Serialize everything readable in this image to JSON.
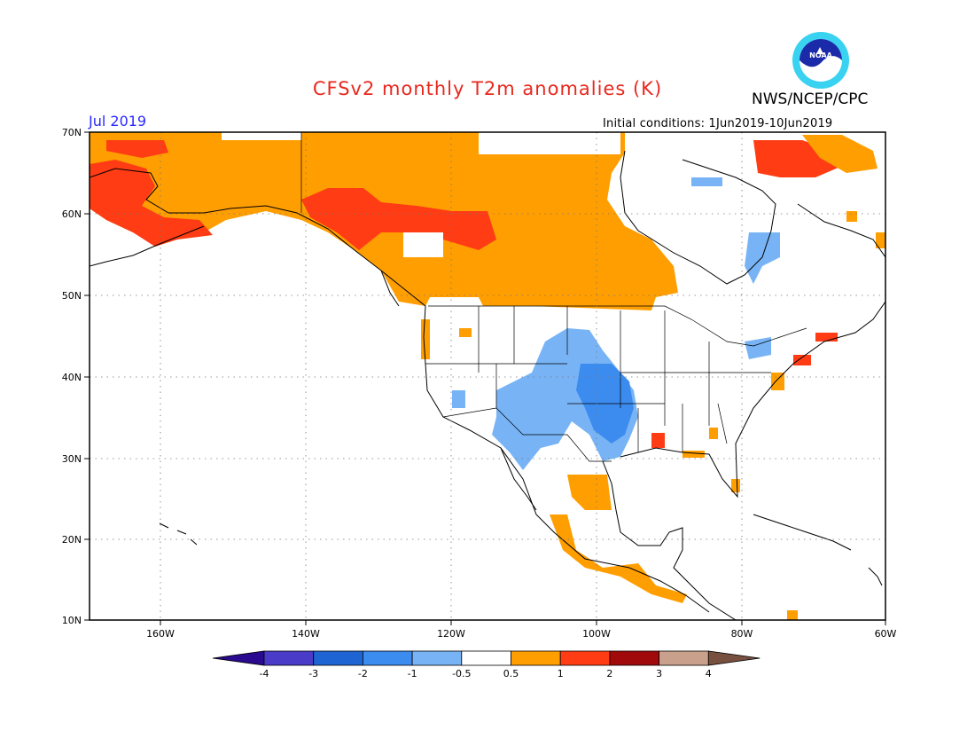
{
  "title": "CFSv2 monthly T2m anomalies (K)",
  "agency": "NWS/NCEP/CPC",
  "logo_text": "NOAA",
  "valid_month": "Jul 2019",
  "initial_conditions": "Initial conditions: 1Jun2019-10Jun2019",
  "lat_labels": [
    "70N",
    "60N",
    "50N",
    "40N",
    "30N",
    "20N",
    "10N"
  ],
  "lon_labels": [
    "160W",
    "140W",
    "120W",
    "100W",
    "80W",
    "60W"
  ],
  "colorbar": {
    "labels": [
      "-4",
      "-3",
      "-2",
      "-1",
      "-0.5",
      "0.5",
      "1",
      "2",
      "3",
      "4"
    ],
    "colors": [
      "#2a0a8f",
      "#4a3cc8",
      "#1e64d2",
      "#3c8cf0",
      "#78b4f5",
      "#ffffff",
      "#ff9e00",
      "#ff3c14",
      "#a00a0a",
      "#c8a08c",
      "#785040"
    ]
  },
  "chart_data": {
    "type": "heatmap",
    "title": "CFSv2 monthly T2m anomalies (K)",
    "units": "K",
    "month": "Jul 2019",
    "lon_range": [
      -170,
      -60
    ],
    "lat_range": [
      10,
      70
    ],
    "regions": [
      {
        "area": "Alaska and NW Canada",
        "anomaly_range": [
          0.5,
          2
        ]
      },
      {
        "area": "Central Canada prairies",
        "anomaly_range": [
          0.5,
          1
        ]
      },
      {
        "area": "Great Plains / south-central US",
        "anomaly_range": [
          -2,
          -0.5
        ]
      },
      {
        "area": "Hudson Bay coast",
        "anomaly_range": [
          -1,
          -0.5
        ]
      },
      {
        "area": "Northern Mexico plateau",
        "anomaly_range": [
          0.5,
          1
        ]
      },
      {
        "area": "Mexican Pacific coast",
        "anomaly_range": [
          0.5,
          1
        ]
      },
      {
        "area": "US Northeast coast",
        "anomaly_range": [
          1,
          2
        ]
      }
    ]
  }
}
